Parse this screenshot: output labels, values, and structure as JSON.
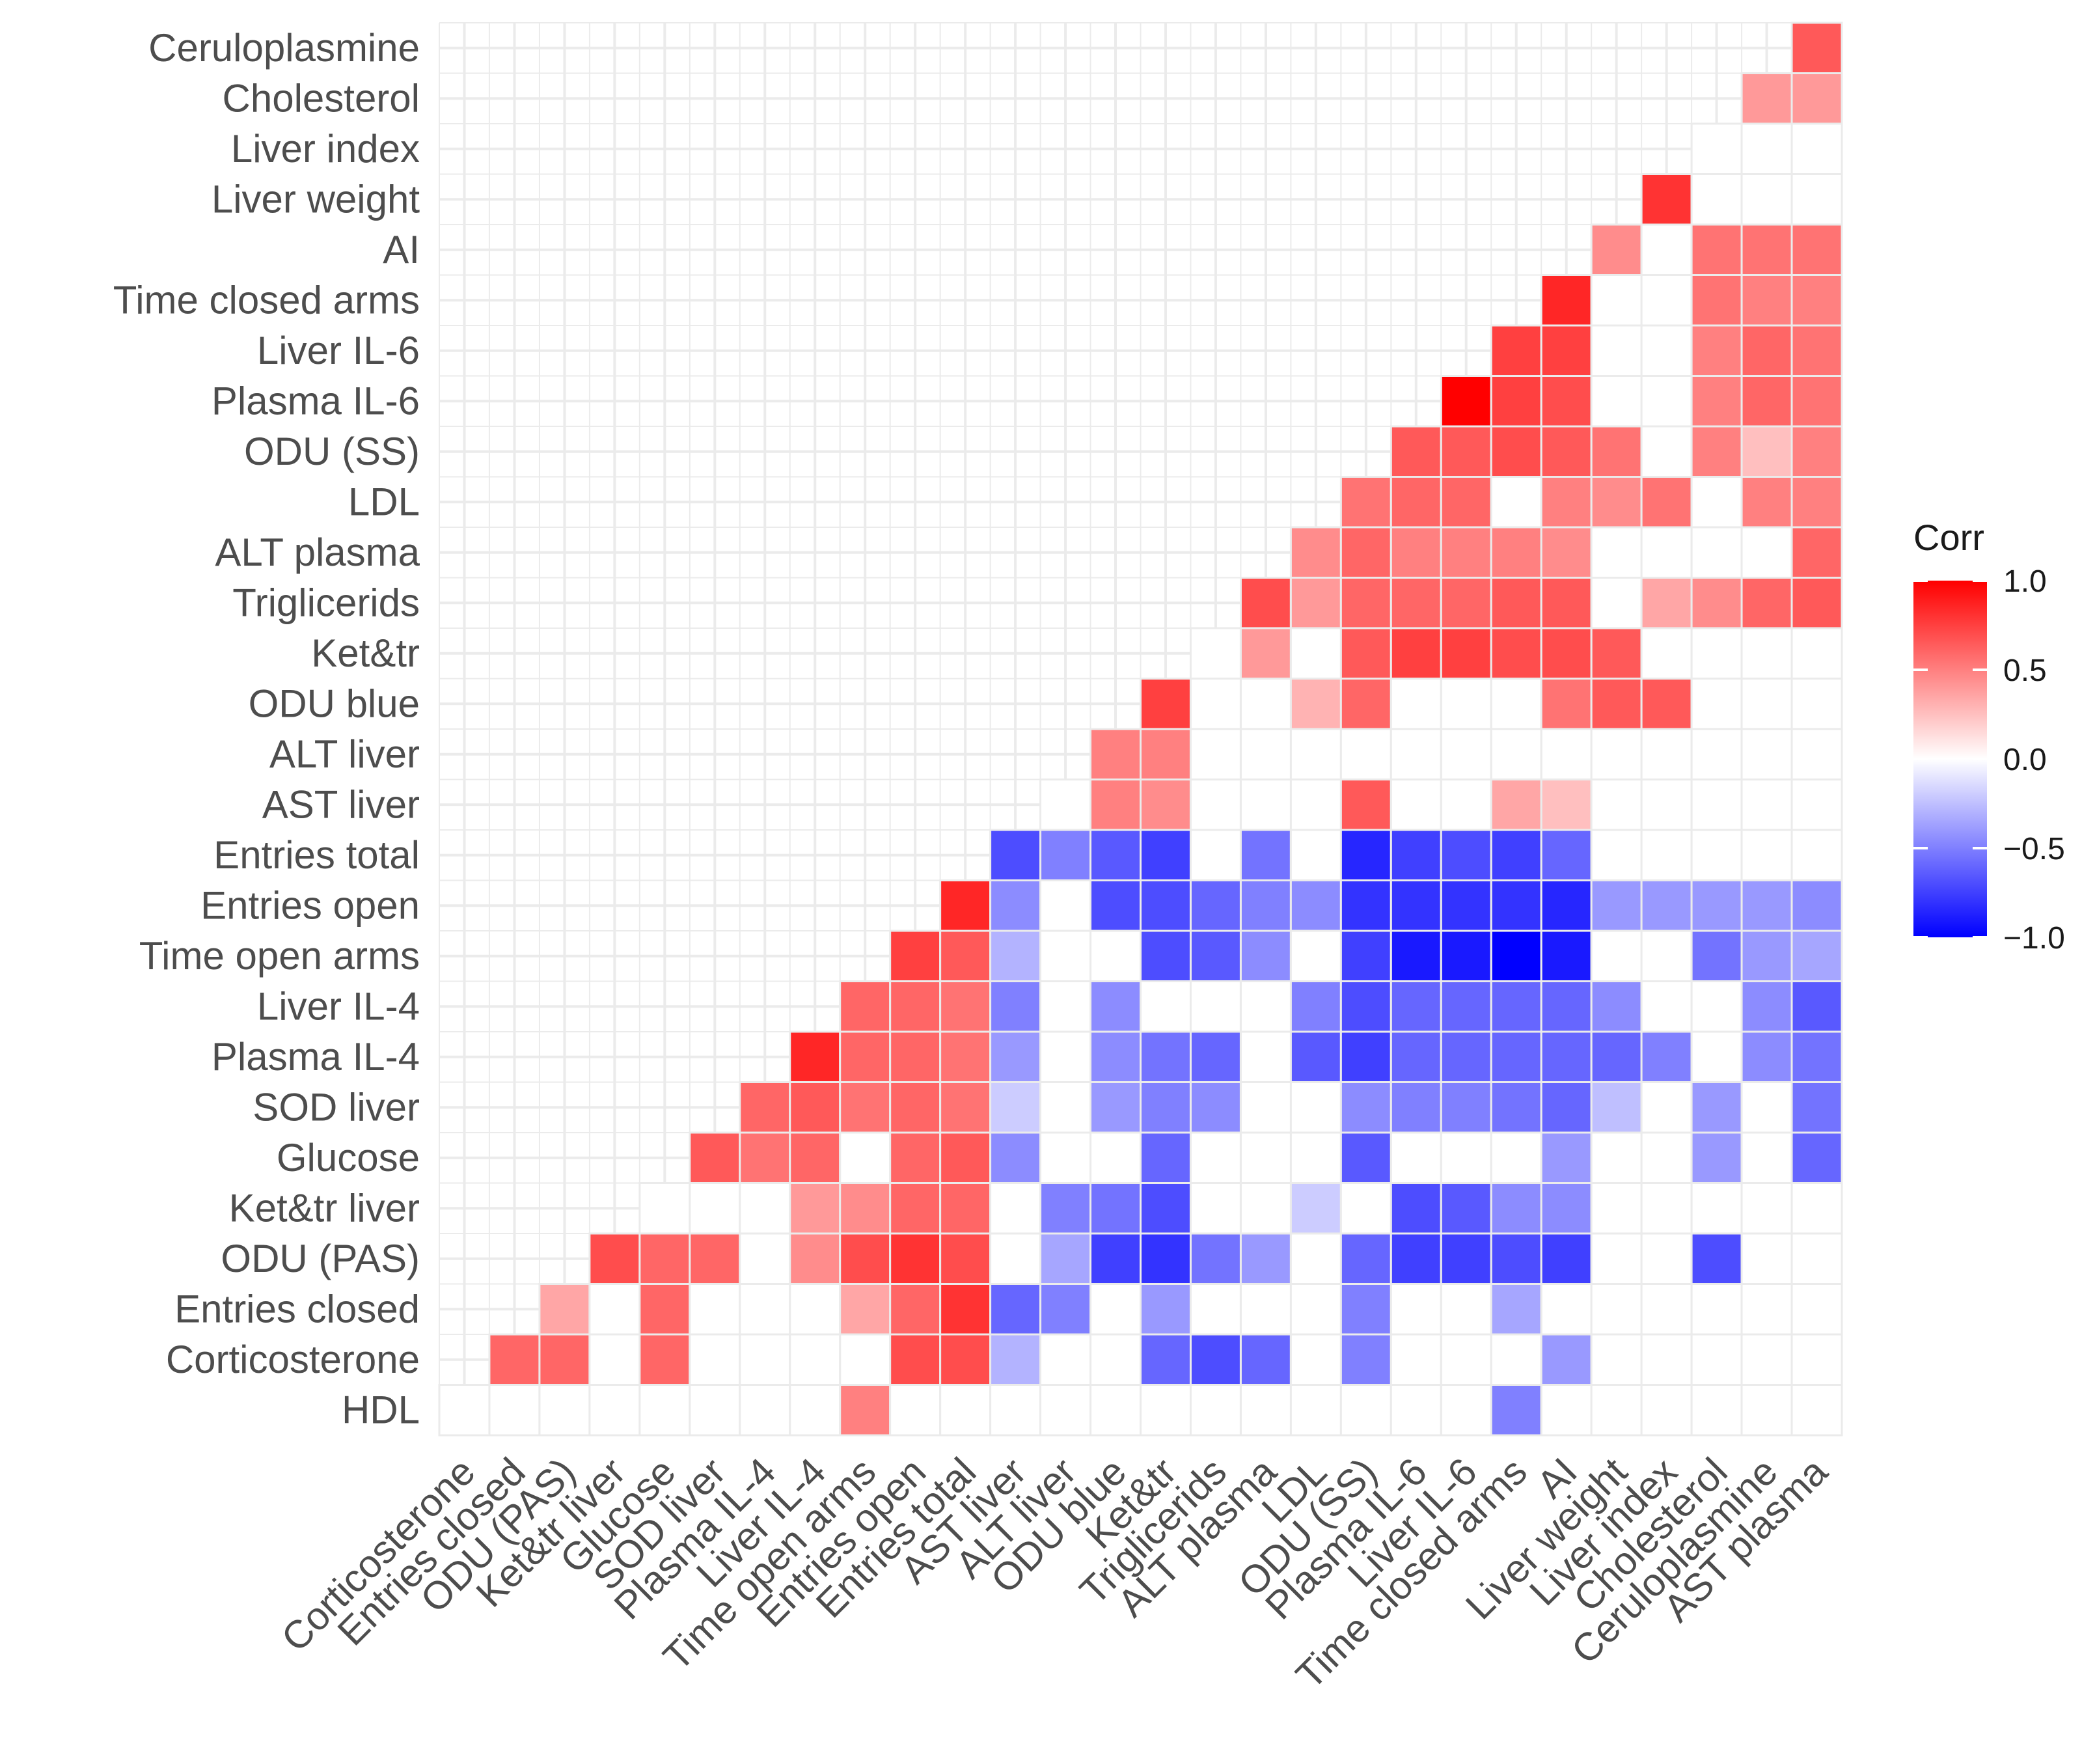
{
  "chart_data": {
    "type": "heatmap",
    "title": "",
    "variables": [
      "Corticosterone",
      "Entries closed",
      "ODU (PAS)",
      "Ket&tr liver",
      "Glucose",
      "SOD liver",
      "Plasma IL-4",
      "Liver IL-4",
      "Time open arms",
      "Entries open",
      "Entries total",
      "AST liver",
      "ALT liver",
      "ODU blue",
      "Ket&tr",
      "Triglicerids",
      "ALT plasma",
      "LDL",
      "ODU (SS)",
      "Plasma IL-6",
      "Liver IL-6",
      "Time closed arms",
      "AI",
      "Liver weight",
      "Liver index",
      "Cholesterol",
      "Ceruloplasmine",
      "AST plasma"
    ],
    "row_labels": [
      "HDL",
      "Corticosterone",
      "Entries closed",
      "ODU (PAS)",
      "Ket&tr liver",
      "Glucose",
      "SOD liver",
      "Plasma IL-4",
      "Liver IL-4",
      "Time open arms",
      "Entries open",
      "Entries total",
      "AST liver",
      "ALT liver",
      "ODU blue",
      "Ket&tr",
      "Triglicerids",
      "ALT plasma",
      "LDL",
      "ODU (SS)",
      "Plasma IL-6",
      "Liver IL-6",
      "Time closed arms",
      "AI",
      "Liver weight",
      "Liver index",
      "Cholesterol",
      "Ceruloplasmine"
    ],
    "column_labels": [
      "Corticosterone",
      "Entries closed",
      "ODU (PAS)",
      "Ket&tr liver",
      "Glucose",
      "SOD liver",
      "Plasma IL-4",
      "Liver IL-4",
      "Time open arms",
      "Entries open",
      "Entries total",
      "AST liver",
      "ALT liver",
      "ODU blue",
      "Ket&tr",
      "Triglicerids",
      "ALT plasma",
      "LDL",
      "ODU (SS)",
      "Plasma IL-6",
      "Liver IL-6",
      "Time closed arms",
      "AI",
      "Liver weight",
      "Liver index",
      "Cholesterol",
      "Ceruloplasmine",
      "AST plasma"
    ],
    "values": [
      [
        0,
        0,
        0,
        0,
        0,
        0,
        0,
        0,
        0.5,
        0,
        0,
        0,
        0,
        0,
        0,
        0,
        0,
        0,
        0,
        0,
        0,
        -0.5,
        0,
        0,
        0,
        0,
        0,
        0
      ],
      [
        null,
        0.6,
        0.6,
        0,
        0.6,
        0,
        0,
        0,
        0,
        0.7,
        0.7,
        -0.3,
        0,
        0,
        -0.6,
        -0.7,
        -0.6,
        0,
        -0.5,
        0,
        0,
        0,
        -0.4,
        0,
        0,
        0,
        0,
        0
      ],
      [
        null,
        null,
        0.35,
        0,
        0.6,
        0,
        0,
        0,
        0.35,
        0.6,
        0.8,
        -0.6,
        -0.5,
        0,
        -0.4,
        0,
        0,
        0,
        -0.5,
        0,
        0,
        -0.35,
        0,
        0,
        0,
        0,
        0,
        0
      ],
      [
        null,
        null,
        null,
        0.7,
        0.6,
        0.6,
        0,
        0.45,
        0.7,
        0.8,
        0.7,
        0,
        -0.35,
        -0.75,
        -0.8,
        -0.55,
        -0.4,
        0,
        -0.6,
        -0.75,
        -0.75,
        -0.7,
        -0.75,
        0,
        0,
        -0.7,
        0,
        0
      ],
      [
        null,
        null,
        null,
        null,
        0,
        0,
        0,
        0.4,
        0.45,
        0.6,
        0.6,
        0,
        -0.5,
        -0.55,
        -0.7,
        0,
        0,
        -0.2,
        0,
        -0.7,
        -0.65,
        -0.45,
        -0.45,
        0,
        0,
        0,
        0,
        0
      ],
      [
        null,
        null,
        null,
        null,
        null,
        0.65,
        0.55,
        0.6,
        0,
        0.6,
        0.65,
        -0.45,
        0,
        0,
        -0.6,
        0,
        0,
        0,
        -0.65,
        0,
        0,
        0,
        -0.4,
        0,
        0,
        -0.4,
        0,
        -0.6
      ],
      [
        null,
        null,
        null,
        null,
        null,
        null,
        0.6,
        0.65,
        0.55,
        0.6,
        0.55,
        -0.2,
        0,
        -0.4,
        -0.5,
        -0.45,
        0,
        0,
        -0.45,
        -0.5,
        -0.5,
        -0.55,
        -0.6,
        -0.25,
        0,
        -0.4,
        0,
        -0.55
      ],
      [
        null,
        null,
        null,
        null,
        null,
        null,
        null,
        0.85,
        0.6,
        0.6,
        0.55,
        -0.4,
        0,
        -0.45,
        -0.55,
        -0.6,
        0,
        -0.65,
        -0.75,
        -0.6,
        -0.6,
        -0.6,
        -0.6,
        -0.6,
        -0.5,
        0,
        -0.45,
        -0.55
      ],
      [
        null,
        null,
        null,
        null,
        null,
        null,
        null,
        null,
        0.6,
        0.6,
        0.55,
        -0.5,
        0,
        -0.45,
        0,
        0,
        0,
        -0.5,
        -0.7,
        -0.6,
        -0.6,
        -0.6,
        -0.6,
        -0.45,
        0,
        0,
        -0.45,
        -0.65
      ],
      [
        null,
        null,
        null,
        null,
        null,
        null,
        null,
        null,
        null,
        0.75,
        0.65,
        -0.3,
        0,
        0,
        -0.7,
        -0.65,
        -0.45,
        0,
        -0.75,
        -0.9,
        -0.9,
        -1.0,
        -0.9,
        0,
        0,
        -0.55,
        -0.4,
        -0.35
      ],
      [
        null,
        null,
        null,
        null,
        null,
        null,
        null,
        null,
        null,
        null,
        0.85,
        -0.45,
        0,
        -0.7,
        -0.7,
        -0.6,
        -0.5,
        -0.45,
        -0.8,
        -0.8,
        -0.8,
        -0.8,
        -0.85,
        -0.4,
        -0.4,
        -0.4,
        -0.4,
        -0.45
      ],
      [
        null,
        null,
        null,
        null,
        null,
        null,
        null,
        null,
        null,
        null,
        null,
        -0.7,
        -0.5,
        -0.65,
        -0.75,
        0,
        -0.55,
        0,
        -0.85,
        -0.75,
        -0.7,
        -0.75,
        -0.6,
        0,
        0,
        0,
        0,
        0
      ],
      [
        null,
        null,
        null,
        null,
        null,
        null,
        null,
        null,
        null,
        null,
        null,
        null,
        0,
        0.5,
        0.45,
        0,
        0,
        0,
        0.65,
        0,
        0,
        0.35,
        0.25,
        0,
        0,
        0,
        0,
        0
      ],
      [
        null,
        null,
        null,
        null,
        null,
        null,
        null,
        null,
        null,
        null,
        null,
        null,
        null,
        0.5,
        0.5,
        0,
        0,
        0,
        0,
        0,
        0,
        0,
        0,
        0,
        0,
        0,
        0,
        0
      ],
      [
        null,
        null,
        null,
        null,
        null,
        null,
        null,
        null,
        null,
        null,
        null,
        null,
        null,
        null,
        0.75,
        0,
        0,
        0.3,
        0.6,
        0,
        0,
        0,
        0.55,
        0.65,
        0.65,
        0,
        0,
        0
      ],
      [
        null,
        null,
        null,
        null,
        null,
        null,
        null,
        null,
        null,
        null,
        null,
        null,
        null,
        null,
        null,
        0,
        0.4,
        0,
        0.65,
        0.75,
        0.75,
        0.7,
        0.7,
        0.65,
        0,
        0,
        0,
        0
      ],
      [
        null,
        null,
        null,
        null,
        null,
        null,
        null,
        null,
        null,
        null,
        null,
        null,
        null,
        null,
        null,
        null,
        0.7,
        0.4,
        0.6,
        0.6,
        0.6,
        0.65,
        0.65,
        0,
        0.35,
        0.45,
        0.6,
        0.65
      ],
      [
        null,
        null,
        null,
        null,
        null,
        null,
        null,
        null,
        null,
        null,
        null,
        null,
        null,
        null,
        null,
        null,
        null,
        0.45,
        0.6,
        0.5,
        0.5,
        0.5,
        0.45,
        0,
        0,
        0,
        0,
        0.6
      ],
      [
        null,
        null,
        null,
        null,
        null,
        null,
        null,
        null,
        null,
        null,
        null,
        null,
        null,
        null,
        null,
        null,
        null,
        null,
        0.55,
        0.6,
        0.6,
        0,
        0.5,
        0.45,
        0.55,
        0,
        0.5,
        0.5
      ],
      [
        null,
        null,
        null,
        null,
        null,
        null,
        null,
        null,
        null,
        null,
        null,
        null,
        null,
        null,
        null,
        null,
        null,
        null,
        null,
        0.65,
        0.65,
        0.7,
        0.65,
        0.55,
        0,
        0.5,
        0.25,
        0.5
      ],
      [
        null,
        null,
        null,
        null,
        null,
        null,
        null,
        null,
        null,
        null,
        null,
        null,
        null,
        null,
        null,
        null,
        null,
        null,
        null,
        null,
        1.0,
        0.75,
        0.7,
        0,
        0,
        0.5,
        0.6,
        0.55
      ],
      [
        null,
        null,
        null,
        null,
        null,
        null,
        null,
        null,
        null,
        null,
        null,
        null,
        null,
        null,
        null,
        null,
        null,
        null,
        null,
        null,
        null,
        0.75,
        0.75,
        0,
        0,
        0.5,
        0.6,
        0.55
      ],
      [
        null,
        null,
        null,
        null,
        null,
        null,
        null,
        null,
        null,
        null,
        null,
        null,
        null,
        null,
        null,
        null,
        null,
        null,
        null,
        null,
        null,
        null,
        0.85,
        0,
        0,
        0.55,
        0.5,
        0.5
      ],
      [
        null,
        null,
        null,
        null,
        null,
        null,
        null,
        null,
        null,
        null,
        null,
        null,
        null,
        null,
        null,
        null,
        null,
        null,
        null,
        null,
        null,
        null,
        null,
        0.45,
        0,
        0.55,
        0.55,
        0.55
      ],
      [
        null,
        null,
        null,
        null,
        null,
        null,
        null,
        null,
        null,
        null,
        null,
        null,
        null,
        null,
        null,
        null,
        null,
        null,
        null,
        null,
        null,
        null,
        null,
        null,
        0.8,
        0,
        0,
        0
      ],
      [
        null,
        null,
        null,
        null,
        null,
        null,
        null,
        null,
        null,
        null,
        null,
        null,
        null,
        null,
        null,
        null,
        null,
        null,
        null,
        null,
        null,
        null,
        null,
        null,
        null,
        0,
        0,
        0
      ],
      [
        null,
        null,
        null,
        null,
        null,
        null,
        null,
        null,
        null,
        null,
        null,
        null,
        null,
        null,
        null,
        null,
        null,
        null,
        null,
        null,
        null,
        null,
        null,
        null,
        null,
        null,
        0.4,
        0.4
      ],
      [
        null,
        null,
        null,
        null,
        null,
        null,
        null,
        null,
        null,
        null,
        null,
        null,
        null,
        null,
        null,
        null,
        null,
        null,
        null,
        null,
        null,
        null,
        null,
        null,
        null,
        null,
        null,
        0.65
      ]
    ],
    "legend": {
      "title": "Corr",
      "ticks": [
        1.0,
        0.5,
        0.0,
        -0.5,
        -1.0
      ],
      "tick_labels": [
        "1.0",
        "0.5",
        "0.0",
        "−0.5",
        "−1.0"
      ],
      "limits": [
        -1.0,
        1.0
      ],
      "colors": {
        "high": "#ff0000",
        "mid": "#ffffff",
        "low": "#0000ff"
      },
      "placement": "right"
    },
    "grid": true,
    "grid_color": "#ebebeb",
    "tile_border_color": "#ebebeb"
  }
}
